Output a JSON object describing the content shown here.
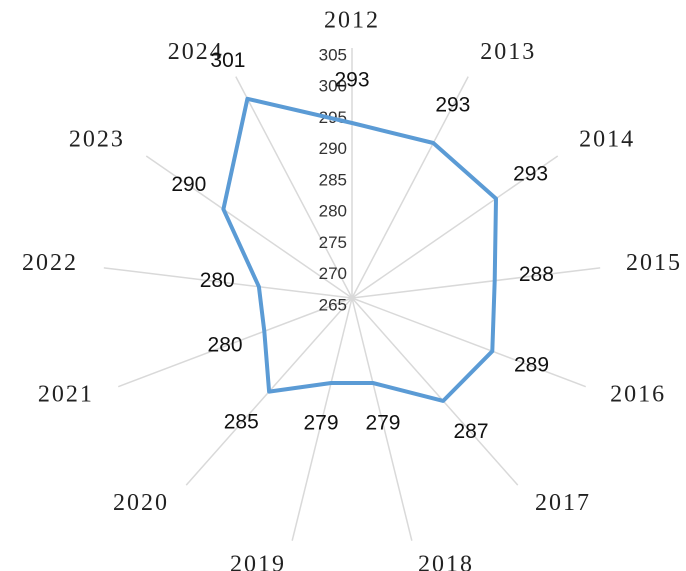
{
  "chart_data": {
    "type": "radar",
    "categories": [
      "2012",
      "2013",
      "2014",
      "2015",
      "2016",
      "2017",
      "2018",
      "2019",
      "2020",
      "2021",
      "2022",
      "2023",
      "2024"
    ],
    "values": [
      293,
      293,
      293,
      288,
      289,
      287,
      279,
      279,
      285,
      280,
      280,
      290,
      301
    ],
    "color": "#5b9bd5",
    "ylim": [
      265,
      305
    ],
    "yticks": [
      265,
      270,
      275,
      280,
      285,
      290,
      295,
      300,
      305
    ]
  }
}
